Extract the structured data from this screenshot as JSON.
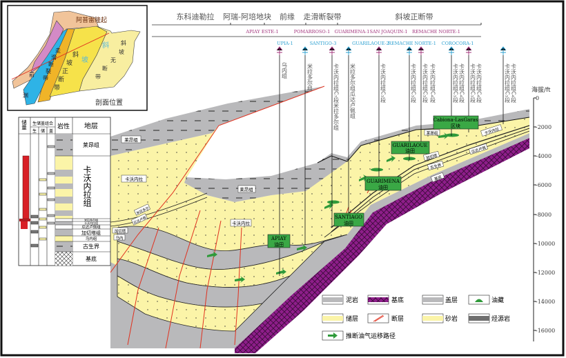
{
  "inset_map": {
    "title": "剖面位置",
    "uplift": "阿普雷隆起",
    "zone_foredeep": [
      "前",
      "渊"
    ],
    "zone_strike_slip": [
      "走",
      "滑",
      "断",
      "裂",
      "带"
    ],
    "zone_slope_normal": [
      "斜",
      "坡",
      "正",
      "断",
      "带"
    ],
    "zone_slope_label": [
      "斜",
      "坡"
    ],
    "zone_slope_nofault": [
      "斜",
      "坡",
      "无",
      "断",
      "带"
    ]
  },
  "regions": [
    "东科迪勒拉",
    "阿瑞-阿培地块",
    "前缘",
    "走滑断裂带",
    "斜坡正断带"
  ],
  "wells_row1": [
    "APIAY ESTE-1",
    "POMARROSO-1",
    "GUARIMENA-1",
    "SAN JOAQUIN-1",
    "REMACHE NORTE-1"
  ],
  "wells_row2": [
    "UPIA-1",
    "SANTIGO-3",
    "GUARILAOUE-2",
    "REMACHE NORTE-1",
    "COROCORA-1"
  ],
  "well_targets": [
    [
      "乌内组"
    ],
    [
      "米拉多尔组"
    ],
    [
      "卡沃内拉组C₇段米拉多尔组"
    ],
    [
      "米拉多尔组瓜达卢佩组"
    ],
    [
      "卡沃内拉组C₁段"
    ],
    [
      "卡沃内拉组C₁段"
    ],
    [
      "卡沃内拉组C₁段",
      "卡沃内拉组C₄段"
    ],
    [
      "卡沃内拉组C₁段",
      "卡沃内拉组C₄段"
    ],
    [
      "卡沃内拉组C₁段",
      "卡沃内拉组C₄段"
    ],
    [
      "卡沃内拉组C₁段",
      "卡沃内拉组C₄段"
    ]
  ],
  "colors": {
    "mudstone": "#b9b9bb",
    "sandstone": "#fbf4a8",
    "source_rock": "#7a7a7a",
    "basement": "#8e1e8a",
    "fault": "#e0301e",
    "oilfield": "#3aa845",
    "well_magenta": "#a0307a",
    "well_cyan": "#2a9fd0"
  },
  "column": {
    "headers": {
      "reserves": "储量",
      "combo": "生储盖组合",
      "source": "生",
      "reservoir": "储",
      "seal": "盖",
      "lithology": "岩性",
      "strata": "地层"
    },
    "strata": [
      "莱昂组",
      "卡沃内拉组",
      "米拉多尔组",
      "卡沃内拉组",
      "瓜达卢佩组",
      "加切塔组",
      "乌内组",
      "古生界",
      "基底"
    ]
  },
  "section_labels": {
    "leon_left": "莱昂组",
    "leon_center": "莱昂组",
    "leon_right": "莱昂组",
    "carbonera_left": "卡沃内拉",
    "carbonera_center": "卡沃内拉",
    "carbonera_right": "卡沃内拉",
    "mirador": "米拉多尔",
    "guadalupe": "瓜达卢佩",
    "gacheta": "加切塔",
    "une": "乌内",
    "paleozoic": "古生界",
    "basement": "基底"
  },
  "oilfields": [
    {
      "name": "APIAY",
      "type": "油田"
    },
    {
      "name": "SANTIAGO",
      "type": "油田"
    },
    {
      "name": "GUARIMENA",
      "type": "油田"
    },
    {
      "name": "GUARILAOUE",
      "type": "油田"
    },
    {
      "name": "Cabiona-LasGaras",
      "type": "区块"
    }
  ],
  "depth_axis": {
    "title": "海拔/ft",
    "ticks": [
      "0",
      "-2000",
      "-4000",
      "-6000",
      "-8000",
      "-10000",
      "-12000",
      "-14000",
      "-16000"
    ]
  },
  "legend": {
    "mudstone": "泥岩",
    "basement": "基底",
    "seal": "盖层",
    "reservoir_accum": "油藏",
    "reservoir": "储层",
    "fault": "断层",
    "sandstone": "砂岩",
    "source_rock": "烃源岩",
    "migration": "推断油气运移路径"
  }
}
